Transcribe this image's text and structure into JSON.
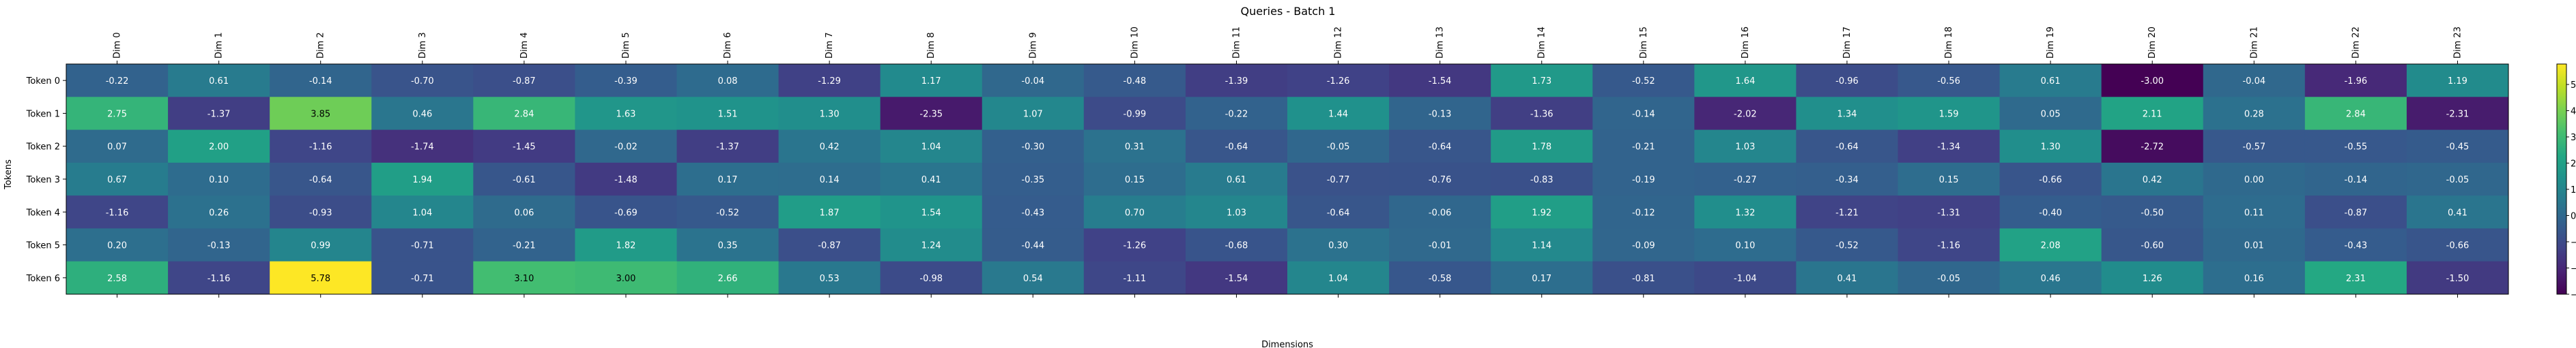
{
  "chart_data": {
    "type": "heatmap",
    "title": "Queries - Batch 1",
    "xlabel": "Dimensions",
    "ylabel": "Tokens",
    "x_labels": [
      "Dim 0",
      "Dim 1",
      "Dim 2",
      "Dim 3",
      "Dim 4",
      "Dim 5",
      "Dim 6",
      "Dim 7",
      "Dim 8",
      "Dim 9",
      "Dim 10",
      "Dim 11",
      "Dim 12",
      "Dim 13",
      "Dim 14",
      "Dim 15",
      "Dim 16",
      "Dim 17",
      "Dim 18",
      "Dim 19",
      "Dim 20",
      "Dim 21",
      "Dim 22",
      "Dim 23"
    ],
    "y_labels": [
      "Token 0",
      "Token 1",
      "Token 2",
      "Token 3",
      "Token 4",
      "Token 5",
      "Token 6"
    ],
    "values": [
      [
        -0.22,
        0.61,
        -0.14,
        -0.7,
        -0.87,
        -0.39,
        0.08,
        -1.29,
        1.17,
        -0.04,
        -0.48,
        -1.39,
        -1.26,
        -1.54,
        1.73,
        -0.52,
        1.64,
        -0.96,
        -0.56,
        0.61,
        -3.0,
        -0.04,
        -1.96,
        1.19
      ],
      [
        2.75,
        -1.37,
        3.85,
        0.46,
        2.84,
        1.63,
        1.51,
        1.3,
        -2.35,
        1.07,
        -0.99,
        -0.22,
        1.44,
        -0.13,
        -1.36,
        -0.14,
        -2.02,
        1.34,
        1.59,
        0.05,
        2.11,
        0.28,
        2.84,
        -2.31
      ],
      [
        0.07,
        2.0,
        -1.16,
        -1.74,
        -1.45,
        -0.02,
        -1.37,
        0.42,
        1.04,
        -0.3,
        0.31,
        -0.64,
        -0.05,
        -0.64,
        1.78,
        -0.21,
        1.03,
        -0.64,
        -1.34,
        1.3,
        -2.72,
        -0.57,
        -0.55,
        -0.45
      ],
      [
        0.67,
        0.1,
        -0.64,
        1.94,
        -0.61,
        -1.48,
        0.17,
        0.14,
        0.41,
        -0.35,
        0.15,
        0.61,
        -0.77,
        -0.76,
        -0.83,
        -0.19,
        -0.27,
        -0.34,
        0.15,
        -0.66,
        0.42,
        -0.0,
        -0.14,
        -0.05
      ],
      [
        -1.16,
        0.26,
        -0.93,
        1.04,
        0.06,
        -0.69,
        -0.52,
        1.87,
        1.54,
        -0.43,
        0.7,
        1.03,
        -0.64,
        -0.06,
        1.92,
        -0.12,
        1.32,
        -1.21,
        -1.31,
        -0.4,
        -0.5,
        0.11,
        -0.87,
        0.41
      ],
      [
        0.2,
        -0.13,
        0.99,
        -0.71,
        -0.21,
        1.82,
        0.35,
        -0.87,
        1.24,
        -0.44,
        -1.26,
        -0.68,
        0.3,
        -0.01,
        1.14,
        -0.09,
        0.1,
        -0.52,
        -1.16,
        2.08,
        -0.6,
        0.01,
        -0.43,
        -0.66
      ],
      [
        2.58,
        -1.16,
        5.78,
        -0.71,
        3.1,
        3.0,
        2.66,
        0.53,
        -0.98,
        0.54,
        -1.11,
        -1.54,
        1.04,
        -0.58,
        0.17,
        -0.81,
        -1.04,
        0.41,
        -0.05,
        0.46,
        1.26,
        0.16,
        2.31,
        -1.5
      ]
    ],
    "colormap": "viridis",
    "vmin": -3.0,
    "vmax": 5.78,
    "colorbar_ticks": [
      "-3",
      "-2",
      "-1",
      "0",
      "1",
      "2",
      "3",
      "4",
      "5"
    ]
  }
}
